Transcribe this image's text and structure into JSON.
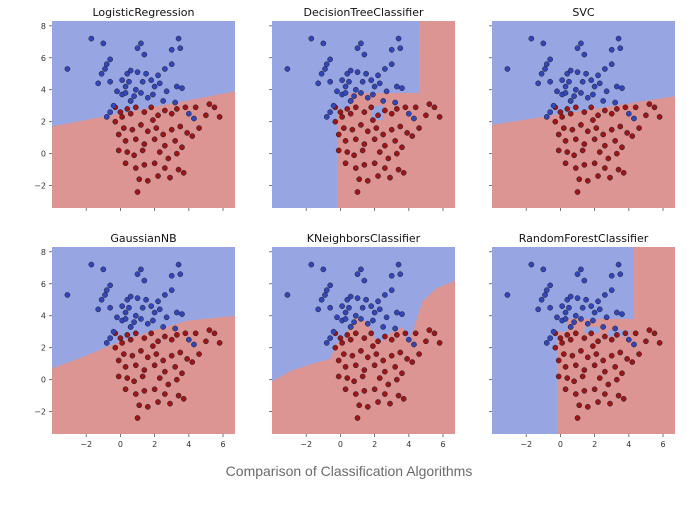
{
  "figure": {
    "caption": "Comparison of Classification Algorithms",
    "colors": {
      "class0_region": "#97a6e3",
      "class1_region": "#dc9593",
      "class0_point": "#3346b8",
      "class1_point": "#9c1616",
      "point_edge": "#1f1f2e"
    }
  },
  "chart_data": {
    "type": "scatter",
    "xlim": [
      -4,
      6.7
    ],
    "ylim": [
      -3.4,
      8.3
    ],
    "xticks": [
      -2,
      0,
      2,
      4,
      6
    ],
    "yticks": [
      -2,
      0,
      2,
      4,
      6,
      8
    ],
    "points_class0": [
      [
        -3.1,
        5.3
      ],
      [
        -1.7,
        7.2
      ],
      [
        -1.0,
        6.9
      ],
      [
        -0.6,
        5.9
      ],
      [
        -0.8,
        5.6
      ],
      [
        -0.9,
        5.3
      ],
      [
        -1.1,
        5.0
      ],
      [
        -1.3,
        4.4
      ],
      [
        -0.6,
        4.5
      ],
      [
        -0.2,
        3.9
      ],
      [
        0.1,
        3.7
      ],
      [
        0.3,
        3.8
      ],
      [
        0.3,
        4.2
      ],
      [
        0.1,
        4.6
      ],
      [
        0.5,
        4.5
      ],
      [
        0.4,
        5.0
      ],
      [
        0.6,
        5.2
      ],
      [
        1.0,
        6.6
      ],
      [
        1.2,
        6.9
      ],
      [
        1.4,
        6.2
      ],
      [
        1.0,
        5.1
      ],
      [
        1.5,
        5.0
      ],
      [
        1.3,
        4.5
      ],
      [
        1.8,
        4.6
      ],
      [
        2.0,
        4.2
      ],
      [
        2.2,
        4.9
      ],
      [
        2.6,
        5.3
      ],
      [
        2.3,
        4.4
      ],
      [
        1.6,
        3.5
      ],
      [
        1.2,
        3.8
      ],
      [
        0.8,
        3.6
      ],
      [
        0.6,
        3.3
      ],
      [
        3.0,
        6.5
      ],
      [
        3.4,
        7.2
      ],
      [
        3.5,
        6.6
      ],
      [
        3.0,
        5.6
      ],
      [
        3.3,
        4.2
      ],
      [
        3.6,
        4.1
      ],
      [
        3.2,
        3.2
      ],
      [
        2.5,
        3.3
      ],
      [
        1.9,
        3.7
      ],
      [
        -0.4,
        3.0
      ],
      [
        -0.8,
        2.3
      ],
      [
        -0.6,
        2.6
      ],
      [
        0.9,
        4.0
      ],
      [
        2.7,
        3.9
      ],
      [
        4.0,
        2.5
      ],
      [
        4.3,
        2.2
      ]
    ],
    "points_class1": [
      [
        -0.3,
        2.9
      ],
      [
        0.0,
        2.6
      ],
      [
        0.4,
        2.8
      ],
      [
        0.6,
        2.5
      ],
      [
        0.9,
        2.9
      ],
      [
        1.4,
        2.6
      ],
      [
        1.8,
        2.9
      ],
      [
        2.2,
        2.4
      ],
      [
        2.6,
        2.7
      ],
      [
        3.0,
        2.5
      ],
      [
        3.3,
        2.8
      ],
      [
        3.8,
        2.9
      ],
      [
        4.4,
        2.9
      ],
      [
        5.2,
        3.1
      ],
      [
        5.5,
        2.9
      ],
      [
        5.8,
        2.3
      ],
      [
        5.0,
        2.4
      ],
      [
        -0.3,
        2.0
      ],
      [
        0.2,
        1.6
      ],
      [
        0.7,
        1.5
      ],
      [
        1.2,
        1.8
      ],
      [
        1.6,
        1.4
      ],
      [
        2.1,
        1.6
      ],
      [
        2.5,
        1.2
      ],
      [
        3.0,
        1.5
      ],
      [
        3.5,
        1.7
      ],
      [
        3.9,
        1.3
      ],
      [
        -0.1,
        1.2
      ],
      [
        0.3,
        0.8
      ],
      [
        0.9,
        0.9
      ],
      [
        1.4,
        0.6
      ],
      [
        2.0,
        0.9
      ],
      [
        2.6,
        0.5
      ],
      [
        3.2,
        0.8
      ],
      [
        3.6,
        0.4
      ],
      [
        -0.1,
        0.2
      ],
      [
        0.4,
        0.1
      ],
      [
        0.8,
        -0.1
      ],
      [
        1.3,
        0.2
      ],
      [
        2.3,
        0.1
      ],
      [
        2.8,
        -0.3
      ],
      [
        3.3,
        0.0
      ],
      [
        0.3,
        -0.6
      ],
      [
        0.9,
        -0.9
      ],
      [
        1.4,
        -0.7
      ],
      [
        2.0,
        -0.6
      ],
      [
        2.6,
        -0.9
      ],
      [
        3.4,
        -1.0
      ],
      [
        1.1,
        -1.6
      ],
      [
        1.6,
        -1.7
      ],
      [
        2.2,
        -1.4
      ],
      [
        2.9,
        -1.5
      ],
      [
        1.0,
        -2.4
      ],
      [
        3.7,
        -1.2
      ],
      [
        4.2,
        1.1
      ],
      [
        4.6,
        1.6
      ],
      [
        0.6,
        3.3
      ],
      [
        0.1,
        2.3
      ],
      [
        1.9,
        2.1
      ]
    ],
    "panels": [
      {
        "title": "LogisticRegression",
        "type": "linear",
        "line": [
          [
            -4,
            1.7
          ],
          [
            6.7,
            3.9
          ]
        ]
      },
      {
        "title": "DecisionTreeClassifier",
        "type": "rect",
        "rects": [
          [
            -0.2,
            6.7,
            -3.4,
            3.8
          ],
          [
            4.6,
            6.7,
            3.8,
            8.3
          ]
        ],
        "holes": [
          [
            1.8,
            2.5,
            2.1,
            3.0
          ],
          [
            -0.2,
            0.5,
            2.8,
            3.8
          ]
        ]
      },
      {
        "title": "SVC",
        "type": "linear",
        "line": [
          [
            -4,
            1.8
          ],
          [
            6.7,
            3.6
          ]
        ]
      },
      {
        "title": "GaussianNB",
        "type": "curve",
        "curve": [
          [
            -4,
            0.7
          ],
          [
            -2,
            1.5
          ],
          [
            0,
            2.4
          ],
          [
            2,
            3.1
          ],
          [
            4,
            3.7
          ],
          [
            6.7,
            4.0
          ]
        ]
      },
      {
        "title": "KNeighborsClassifier",
        "type": "curve",
        "curve": [
          [
            -4,
            -0.1
          ],
          [
            -2.8,
            0.6
          ],
          [
            -1.6,
            1.0
          ],
          [
            -0.6,
            1.3
          ],
          [
            -0.2,
            2.3
          ],
          [
            0.3,
            2.7
          ],
          [
            0.8,
            3.9
          ],
          [
            1.6,
            3.6
          ],
          [
            2.0,
            2.6
          ],
          [
            2.5,
            2.4
          ],
          [
            2.9,
            2.9
          ],
          [
            3.6,
            3.3
          ],
          [
            3.9,
            2.4
          ],
          [
            4.3,
            3.2
          ],
          [
            4.8,
            4.9
          ],
          [
            5.6,
            5.7
          ],
          [
            6.7,
            6.2
          ]
        ]
      },
      {
        "title": "RandomForestClassifier",
        "type": "rect",
        "rects": [
          [
            -0.2,
            6.7,
            -3.4,
            3.8
          ],
          [
            4.3,
            6.7,
            3.8,
            8.3
          ]
        ],
        "holes": [
          [
            1.4,
            2.3,
            2.9,
            3.3
          ],
          [
            2.8,
            4.0,
            2.7,
            3.1
          ],
          [
            -0.2,
            0.4,
            3.0,
            3.8
          ]
        ]
      }
    ]
  }
}
